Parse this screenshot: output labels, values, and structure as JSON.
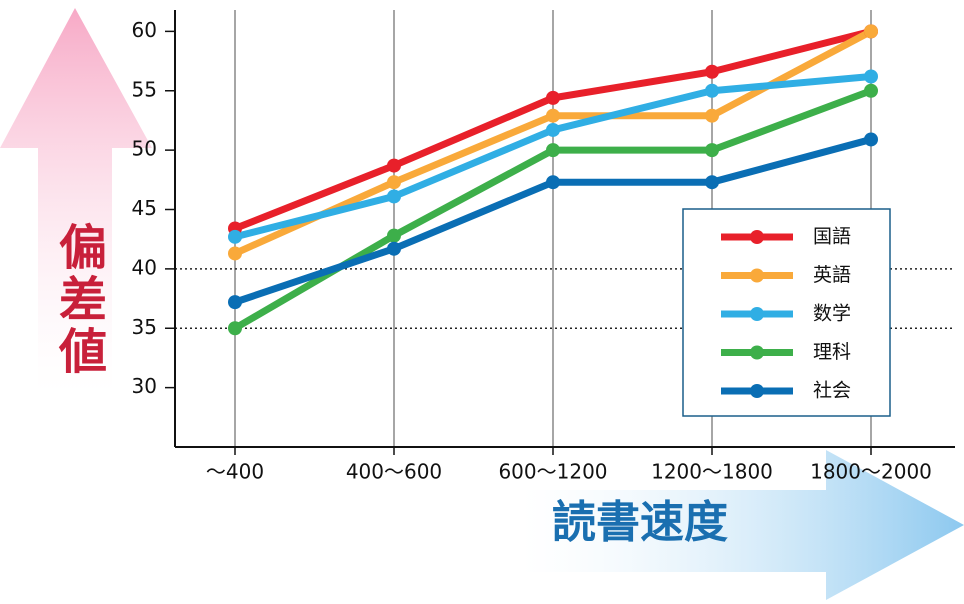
{
  "chart_data": {
    "type": "line",
    "x_label": "読書速度",
    "y_label": "偏差値",
    "categories": [
      "～400",
      "400～600",
      "600～1200",
      "1200～1800",
      "1800～2000"
    ],
    "series": [
      {
        "name": "国語",
        "color": "#e8202a",
        "values": [
          43.4,
          48.7,
          54.4,
          56.6,
          60
        ]
      },
      {
        "name": "英語",
        "color": "#f9a93a",
        "values": [
          41.3,
          47.3,
          52.9,
          52.9,
          60
        ]
      },
      {
        "name": "数学",
        "color": "#30aee4",
        "values": [
          42.7,
          46.1,
          51.7,
          55.0,
          56.2
        ]
      },
      {
        "name": "理科",
        "color": "#3daf4a",
        "values": [
          35.0,
          42.8,
          50.0,
          50.0,
          55.0
        ]
      },
      {
        "name": "社会",
        "color": "#0a6eb4",
        "values": [
          37.2,
          41.7,
          47.3,
          47.3,
          50.9
        ]
      }
    ],
    "ylim": [
      25,
      61.8
    ],
    "yticks": [
      30,
      35,
      40,
      45,
      50,
      55,
      60
    ],
    "reference_lines": [
      35,
      40
    ],
    "grid": true,
    "legend": "right"
  }
}
